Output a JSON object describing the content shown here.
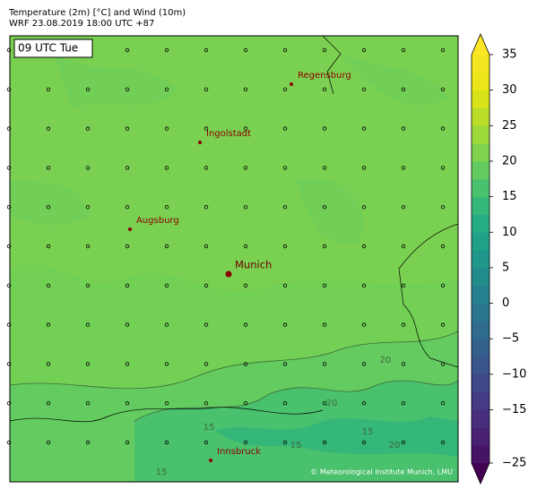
{
  "header": {
    "title": "Temperature (2m) [°C] and Wind (10m)",
    "subtitle": "WRF 23.08.2019 18:00 UTC +87"
  },
  "map": {
    "time_label": "09 UTC Tue",
    "cities": [
      "Regensburg",
      "Ingolstadt",
      "Augsburg",
      "Munich",
      "Innsbruck"
    ],
    "contour_labels": [
      "20",
      "20",
      "20",
      "15",
      "15",
      "15",
      "15"
    ],
    "credit": "© Meteorological Institute Munich, LMU",
    "background": "#7ad151"
  },
  "colorbar": {
    "levels": [
      -25,
      -20,
      -17.5,
      -15,
      -12.5,
      -10,
      -7.5,
      -5,
      -2.5,
      0,
      2.5,
      5,
      7.5,
      10,
      12.5,
      15,
      17.5,
      20,
      22.5,
      25,
      27.5,
      30,
      32.5,
      35
    ],
    "colors": [
      "#471365",
      "#482173",
      "#472f7d",
      "#443b84",
      "#3f4889",
      "#3a548c",
      "#34608d",
      "#2f6b8e",
      "#2a768e",
      "#26818e",
      "#228c8d",
      "#1f978b",
      "#1fa187",
      "#26ac82",
      "#35b779",
      "#4ac16d",
      "#63cb5f",
      "#7fd34e",
      "#9dd93b",
      "#bade28",
      "#d8e219",
      "#ebe51a",
      "#f4e61e"
    ],
    "extend_colors": {
      "max": "#fde725",
      "min": "#440154"
    },
    "ticks": [
      35,
      30,
      25,
      20,
      15,
      10,
      5,
      0,
      {
        "value": -5,
        "label": "−5"
      },
      {
        "value": -10,
        "label": "−10"
      },
      {
        "value": -15,
        "label": "−15"
      },
      {
        "value": -25,
        "label": "−25"
      }
    ]
  }
}
